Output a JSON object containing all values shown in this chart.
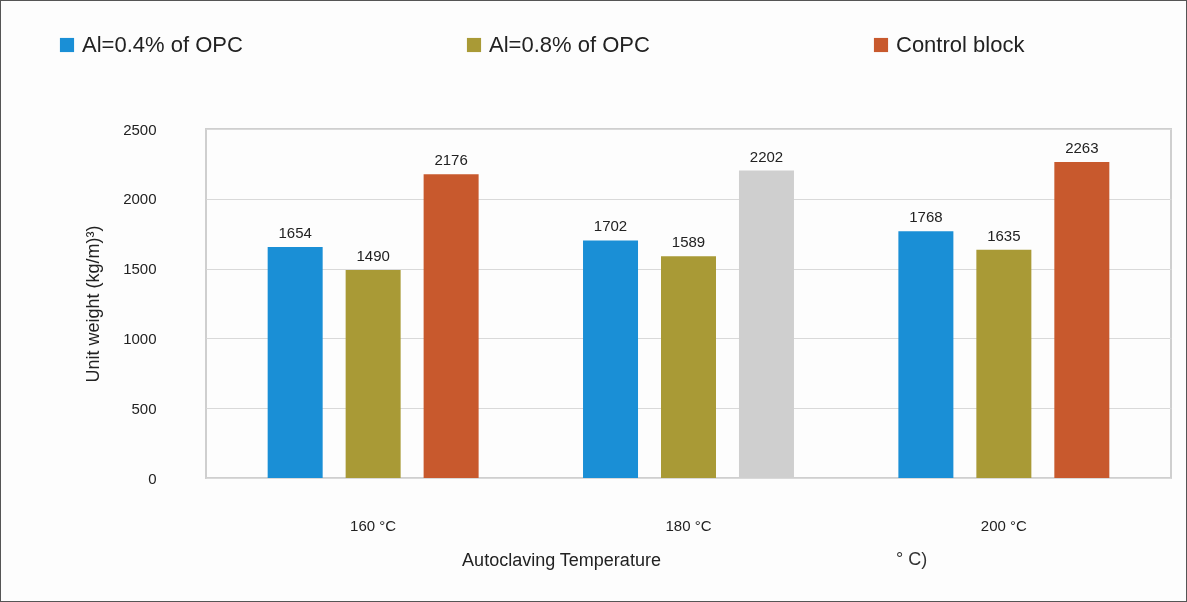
{
  "chart_data": {
    "type": "bar",
    "categories": [
      "160 °C",
      "180 °C",
      "200 °C"
    ],
    "series": [
      {
        "name": "Al=0.4% of OPC",
        "color": "#1a8fd6",
        "values": [
          1654,
          1702,
          1768
        ]
      },
      {
        "name": "Al=0.8% of OPC",
        "color": "#a99a36",
        "values": [
          1490,
          1589,
          1635
        ]
      },
      {
        "name": "Control block",
        "color": "#c8592d",
        "colors": [
          "#c8592d",
          "#cfcfcf",
          "#c8592d"
        ],
        "values": [
          2176,
          2202,
          2263
        ]
      }
    ],
    "xlabel": "Autoclaving Temperature",
    "ylabel": "Unit weight (kg/m)³)",
    "annotations": [
      "° C)"
    ],
    "ylim": [
      0,
      2500
    ],
    "yticks": [
      0,
      500,
      1000,
      1500,
      2000,
      2500
    ],
    "grid": "y",
    "legend": "top",
    "data_labels": true
  }
}
